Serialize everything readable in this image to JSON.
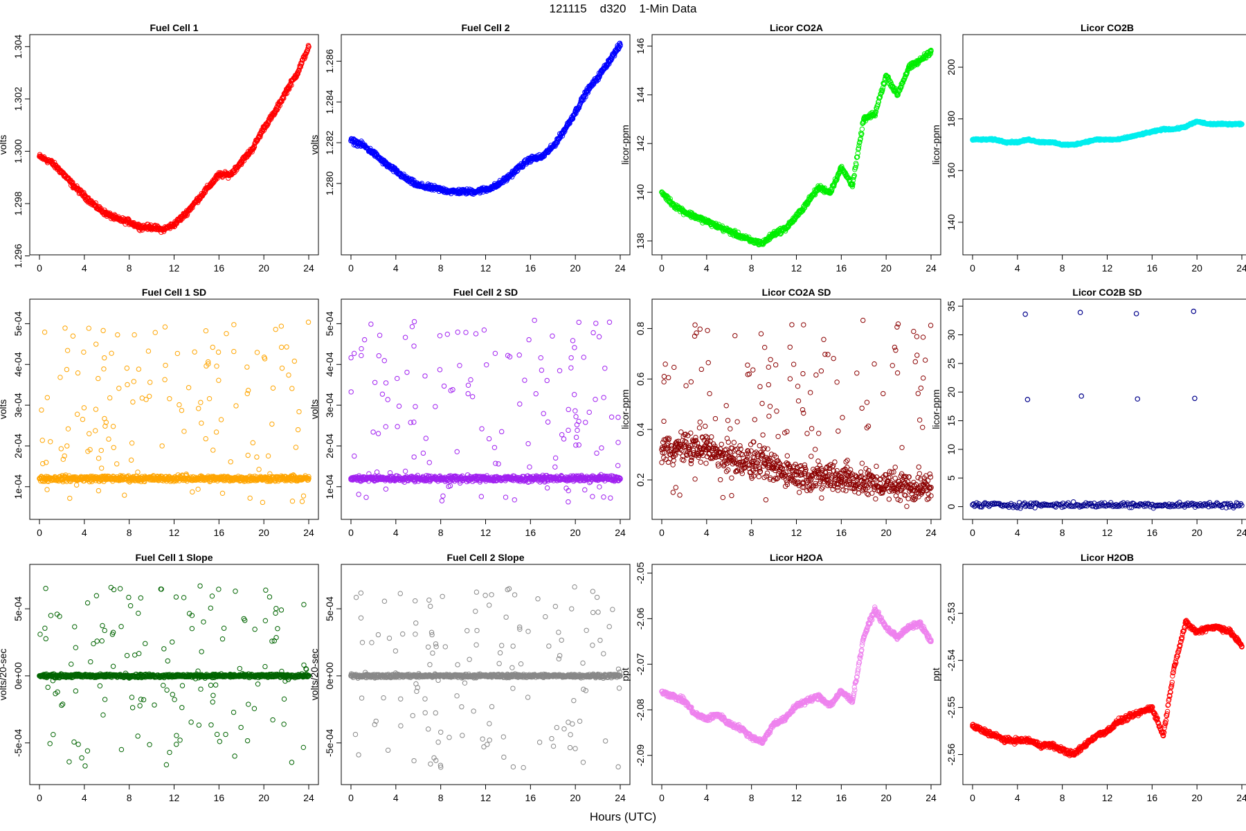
{
  "figure": {
    "title": "121115    d320    1-Min Data",
    "xlabel": "Hours (UTC)"
  },
  "chart_data": [
    {
      "type": "scatter",
      "title": "Fuel Cell 1",
      "ylabel": "volts",
      "color": "#ff0000",
      "xlim": [
        0,
        24
      ],
      "ylim": [
        1.2962,
        1.3043
      ],
      "xticks": [
        "0",
        "4",
        "8",
        "12",
        "16",
        "20",
        "24"
      ],
      "yticks": [
        "1.296",
        "1.298",
        "1.300",
        "1.302",
        "1.304"
      ],
      "series": [
        {
          "x": [
            0,
            1,
            2,
            3,
            4,
            5,
            6,
            7,
            8,
            9,
            10,
            11,
            12,
            13,
            14,
            15,
            16,
            17,
            18,
            19,
            20,
            21,
            22,
            23,
            24
          ],
          "y": [
            1.2998,
            1.2996,
            1.2992,
            1.2987,
            1.2983,
            1.2979,
            1.2976,
            1.2974,
            1.2973,
            1.2971,
            1.2971,
            1.297,
            1.2972,
            1.2976,
            1.2981,
            1.2986,
            1.2991,
            1.2991,
            1.2996,
            1.3001,
            1.3009,
            1.3015,
            1.3023,
            1.303,
            1.304
          ]
        }
      ]
    },
    {
      "type": "scatter",
      "title": "Fuel Cell 2",
      "ylabel": "volts",
      "color": "#0000ff",
      "xlim": [
        0,
        24
      ],
      "ylim": [
        1.2767,
        1.2871
      ],
      "xticks": [
        "0",
        "4",
        "8",
        "12",
        "16",
        "20",
        "24"
      ],
      "yticks": [
        "1.280",
        "1.282",
        "1.284",
        "1.286"
      ],
      "series": [
        {
          "x": [
            0,
            1,
            2,
            3,
            4,
            5,
            6,
            7,
            8,
            9,
            10,
            11,
            12,
            13,
            14,
            15,
            16,
            17,
            18,
            19,
            20,
            21,
            22,
            23,
            24
          ],
          "y": [
            1.2821,
            1.2819,
            1.2815,
            1.281,
            1.2806,
            1.2802,
            1.2799,
            1.2798,
            1.2797,
            1.2796,
            1.2796,
            1.2796,
            1.2797,
            1.2799,
            1.2803,
            1.2808,
            1.2812,
            1.2813,
            1.2818,
            1.2826,
            1.2835,
            1.2845,
            1.2852,
            1.286,
            1.2868
          ]
        }
      ]
    },
    {
      "type": "scatter",
      "title": "Licor CO2A",
      "ylabel": "licor-ppm",
      "color": "#00ee00",
      "xlim": [
        0,
        24
      ],
      "ylim": [
        137.6,
        146.3
      ],
      "xticks": [
        "0",
        "4",
        "8",
        "12",
        "16",
        "20",
        "24"
      ],
      "yticks": [
        "138",
        "140",
        "142",
        "144",
        "146"
      ],
      "series": [
        {
          "x": [
            0,
            1,
            2,
            3,
            4,
            5,
            6,
            7,
            8,
            9,
            10,
            11,
            12,
            13,
            14,
            15,
            16,
            17,
            18,
            19,
            20,
            21,
            22,
            23,
            24
          ],
          "y": [
            140.0,
            139.5,
            139.2,
            139.0,
            138.8,
            138.6,
            138.4,
            138.2,
            138.0,
            137.9,
            138.3,
            138.5,
            139.0,
            139.6,
            140.2,
            140.0,
            141.0,
            140.3,
            143.0,
            143.2,
            144.8,
            144.0,
            145.1,
            145.4,
            145.8
          ]
        }
      ]
    },
    {
      "type": "scatter",
      "title": "Licor CO2B",
      "ylabel": "licor-ppm",
      "color": "#00eeee",
      "xlim": [
        0,
        24
      ],
      "ylim": [
        129,
        211
      ],
      "xticks": [
        "0",
        "4",
        "8",
        "12",
        "16",
        "20",
        "24"
      ],
      "yticks": [
        "140",
        "160",
        "180",
        "200"
      ],
      "series": [
        {
          "x": [
            0,
            1,
            2,
            3,
            4,
            5,
            6,
            7,
            8,
            9,
            10,
            11,
            12,
            13,
            14,
            15,
            16,
            17,
            18,
            19,
            20,
            21,
            22,
            23,
            24
          ],
          "y": [
            172,
            172,
            172,
            171,
            171,
            172,
            171,
            171,
            170,
            170,
            171,
            172,
            172,
            172,
            173,
            174,
            175,
            176,
            176,
            177,
            179,
            178,
            178,
            178,
            178
          ]
        }
      ]
    },
    {
      "type": "scatter",
      "title": "Fuel Cell 1 SD",
      "ylabel": "volts",
      "color": "#ffa500",
      "xlim": [
        0,
        24
      ],
      "ylim": [
        3e-05,
        0.00055
      ],
      "xticks": [
        "0",
        "4",
        "8",
        "12",
        "16",
        "20",
        "24"
      ],
      "yticks": [
        "1e-04",
        "2e-04",
        "3e-04",
        "4e-04",
        "5e-04"
      ],
      "series": [
        {
          "x": [
            0,
            2,
            4,
            6,
            8,
            10,
            12,
            14,
            16,
            18,
            20,
            22,
            24
          ],
          "y": [
            0.00012,
            0.00012,
            0.00012,
            0.00012,
            0.00012,
            0.00012,
            0.00012,
            0.00012,
            0.00012,
            0.00012,
            0.00012,
            0.00012,
            0.00012
          ]
        }
      ]
    },
    {
      "type": "scatter",
      "title": "Fuel Cell 2 SD",
      "ylabel": "volts",
      "color": "#a020f0",
      "xlim": [
        0,
        24
      ],
      "ylim": [
        3e-05,
        0.00055
      ],
      "xticks": [
        "0",
        "4",
        "8",
        "12",
        "16",
        "20",
        "24"
      ],
      "yticks": [
        "1e-04",
        "2e-04",
        "3e-04",
        "4e-04",
        "5e-04"
      ],
      "series": [
        {
          "x": [
            0,
            2,
            4,
            6,
            8,
            10,
            12,
            14,
            16,
            18,
            20,
            22,
            24
          ],
          "y": [
            0.00012,
            0.00012,
            0.00012,
            0.00012,
            0.00012,
            0.00012,
            0.00012,
            0.00012,
            0.00012,
            0.00012,
            0.00012,
            0.00012,
            0.00012
          ]
        }
      ]
    },
    {
      "type": "scatter",
      "title": "Licor CO2A SD",
      "ylabel": "licor-ppm",
      "color": "#8b0000",
      "xlim": [
        0,
        24
      ],
      "ylim": [
        0.06,
        0.9
      ],
      "xticks": [
        "0",
        "4",
        "8",
        "12",
        "16",
        "20",
        "24"
      ],
      "yticks": [
        "0.2",
        "0.4",
        "0.6",
        "0.8"
      ],
      "series": [
        {
          "x": [
            0,
            2,
            4,
            6,
            8,
            10,
            12,
            14,
            16,
            18,
            20,
            22,
            24
          ],
          "y": [
            0.32,
            0.33,
            0.32,
            0.29,
            0.27,
            0.25,
            0.22,
            0.21,
            0.21,
            0.19,
            0.18,
            0.17,
            0.17
          ]
        }
      ]
    },
    {
      "type": "scatter",
      "title": "Licor CO2B SD",
      "ylabel": "licor-ppm",
      "color": "#00008b",
      "xlim": [
        0,
        24
      ],
      "ylim": [
        -1.5,
        35.5
      ],
      "xticks": [
        "0",
        "4",
        "8",
        "12",
        "16",
        "20",
        "24"
      ],
      "yticks": [
        "0",
        "5",
        "10",
        "15",
        "20",
        "25",
        "30",
        "35"
      ],
      "series": [
        {
          "x": [
            0,
            4.7,
            4.9,
            9.6,
            9.7,
            14.6,
            14.7,
            19.7,
            19.8
          ],
          "y": [
            0.3,
            33.6,
            18.7,
            33.9,
            19.3,
            33.7,
            18.8,
            34.1,
            18.9
          ]
        }
      ]
    },
    {
      "type": "scatter",
      "title": "Fuel Cell 1 Slope",
      "ylabel": "volts/20-sec",
      "color": "#006400",
      "xlim": [
        0,
        24
      ],
      "ylim": [
        -0.00078,
        0.0008
      ],
      "xticks": [
        "0",
        "4",
        "8",
        "12",
        "16",
        "20",
        "24"
      ],
      "yticks": [
        "-5e-04",
        "0e+00",
        "5e-04"
      ],
      "series": [
        {
          "x": [
            0,
            2,
            4,
            6,
            8,
            10,
            12,
            14,
            16,
            18,
            20,
            22,
            24
          ],
          "y": [
            0,
            0,
            0,
            0,
            0,
            0,
            0,
            0,
            0,
            0,
            0,
            0,
            0
          ]
        }
      ]
    },
    {
      "type": "scatter",
      "title": "Fuel Cell 2 Slope",
      "ylabel": "volts/20-sec",
      "color": "#888888",
      "xlim": [
        0,
        24
      ],
      "ylim": [
        -0.00078,
        0.0008
      ],
      "xticks": [
        "0",
        "4",
        "8",
        "12",
        "16",
        "20",
        "24"
      ],
      "yticks": [
        "-5e-04",
        "0e+00",
        "5e-04"
      ],
      "series": [
        {
          "x": [
            0,
            2,
            4,
            6,
            8,
            10,
            12,
            14,
            16,
            18,
            20,
            22,
            24
          ],
          "y": [
            0,
            0,
            0,
            0,
            0,
            0,
            0,
            0,
            0,
            0,
            0,
            0,
            0
          ]
        }
      ]
    },
    {
      "type": "scatter",
      "title": "Licor H2OA",
      "ylabel": "ppt",
      "color": "#ee82ee",
      "xlim": [
        0,
        24
      ],
      "ylim": [
        -2.0955,
        -2.049
      ],
      "xticks": [
        "0",
        "4",
        "8",
        "12",
        "16",
        "20",
        "24"
      ],
      "yticks": [
        "-2.09",
        "-2.08",
        "-2.07",
        "-2.06",
        "-2.05"
      ],
      "series": [
        {
          "x": [
            0,
            1,
            2,
            3,
            4,
            5,
            6,
            7,
            8,
            9,
            10,
            11,
            12,
            13,
            14,
            15,
            16,
            17,
            18,
            19,
            20,
            21,
            22,
            23,
            24
          ],
          "y": [
            -2.076,
            -2.077,
            -2.078,
            -2.081,
            -2.082,
            -2.081,
            -2.083,
            -2.084,
            -2.086,
            -2.087,
            -2.083,
            -2.082,
            -2.079,
            -2.078,
            -2.077,
            -2.079,
            -2.076,
            -2.078,
            -2.064,
            -2.058,
            -2.062,
            -2.064,
            -2.062,
            -2.061,
            -2.065
          ]
        }
      ]
    },
    {
      "type": "scatter",
      "title": "Licor H2OB",
      "ylabel": "ppt",
      "color": "#ff0000",
      "xlim": [
        0,
        24
      ],
      "ylim": [
        -2.5655,
        -2.5205
      ],
      "xticks": [
        "0",
        "4",
        "8",
        "12",
        "16",
        "20",
        "24"
      ],
      "yticks": [
        "-2.56",
        "-2.55",
        "-2.54",
        "-2.53"
      ],
      "series": [
        {
          "x": [
            0,
            1,
            2,
            3,
            4,
            5,
            6,
            7,
            8,
            9,
            10,
            11,
            12,
            13,
            14,
            15,
            16,
            17,
            18,
            19,
            20,
            21,
            22,
            23,
            24
          ],
          "y": [
            -2.554,
            -2.555,
            -2.556,
            -2.557,
            -2.557,
            -2.557,
            -2.558,
            -2.558,
            -2.559,
            -2.56,
            -2.558,
            -2.556,
            -2.555,
            -2.553,
            -2.552,
            -2.551,
            -2.55,
            -2.556,
            -2.541,
            -2.532,
            -2.534,
            -2.533,
            -2.533,
            -2.534,
            -2.537
          ]
        }
      ]
    }
  ]
}
